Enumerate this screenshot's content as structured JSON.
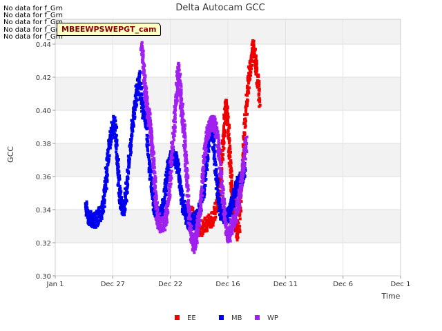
{
  "notices": [
    "No data for f_Grn",
    "No data for f_Grn",
    "No data for f_Grn",
    "No data for f_Grn",
    "No data for f_Grn"
  ],
  "station_tag": "MBEEWPSWEPGT_cam",
  "chart_data": {
    "type": "scatter",
    "title": "Delta Autocam GCC",
    "xlabel": "Time",
    "ylabel": "GCC",
    "x_tick_labels": [
      "Jan 1",
      "Dec 27",
      "Dec 22",
      "Dec 16",
      "Dec 11",
      "Dec 6",
      "Dec 1"
    ],
    "y_ticks": [
      0.3,
      0.32,
      0.34,
      0.36,
      0.38,
      0.4,
      0.42,
      0.44
    ],
    "ylim": [
      0.3,
      0.455
    ],
    "grid": true,
    "legend_position": "bottom-center",
    "series": [
      {
        "name": "EE",
        "color": "#ee0000",
        "points": [
          [
            0.394,
            0.34
          ],
          [
            0.405,
            0.333
          ],
          [
            0.418,
            0.328
          ],
          [
            0.432,
            0.33
          ],
          [
            0.445,
            0.333
          ],
          [
            0.458,
            0.335
          ],
          [
            0.472,
            0.345
          ],
          [
            0.48,
            0.36
          ],
          [
            0.486,
            0.378
          ],
          [
            0.49,
            0.392
          ],
          [
            0.494,
            0.402
          ],
          [
            0.498,
            0.398
          ],
          [
            0.502,
            0.385
          ],
          [
            0.506,
            0.368
          ],
          [
            0.51,
            0.356
          ],
          [
            0.515,
            0.346
          ],
          [
            0.52,
            0.335
          ],
          [
            0.526,
            0.325
          ],
          [
            0.532,
            0.33
          ],
          [
            0.538,
            0.352
          ],
          [
            0.544,
            0.372
          ],
          [
            0.55,
            0.392
          ],
          [
            0.556,
            0.41
          ],
          [
            0.562,
            0.422
          ],
          [
            0.568,
            0.43
          ],
          [
            0.574,
            0.438
          ],
          [
            0.58,
            0.43
          ],
          [
            0.586,
            0.418
          ],
          [
            0.592,
            0.405
          ]
        ]
      },
      {
        "name": "MB",
        "color": "#0000ee",
        "points": [
          [
            0.088,
            0.342
          ],
          [
            0.094,
            0.336
          ],
          [
            0.102,
            0.334
          ],
          [
            0.11,
            0.333
          ],
          [
            0.118,
            0.334
          ],
          [
            0.126,
            0.336
          ],
          [
            0.134,
            0.338
          ],
          [
            0.142,
            0.346
          ],
          [
            0.148,
            0.36
          ],
          [
            0.152,
            0.372
          ],
          [
            0.158,
            0.38
          ],
          [
            0.164,
            0.388
          ],
          [
            0.17,
            0.393
          ],
          [
            0.176,
            0.385
          ],
          [
            0.18,
            0.372
          ],
          [
            0.184,
            0.358
          ],
          [
            0.188,
            0.348
          ],
          [
            0.194,
            0.34
          ],
          [
            0.2,
            0.342
          ],
          [
            0.206,
            0.352
          ],
          [
            0.212,
            0.366
          ],
          [
            0.218,
            0.38
          ],
          [
            0.224,
            0.392
          ],
          [
            0.23,
            0.402
          ],
          [
            0.236,
            0.412
          ],
          [
            0.242,
            0.42
          ],
          [
            0.248,
            0.41
          ],
          [
            0.254,
            0.4
          ],
          [
            0.26,
            0.398
          ],
          [
            0.266,
            0.385
          ],
          [
            0.272,
            0.37
          ],
          [
            0.278,
            0.356
          ],
          [
            0.284,
            0.346
          ],
          [
            0.29,
            0.34
          ],
          [
            0.296,
            0.338
          ],
          [
            0.302,
            0.336
          ],
          [
            0.308,
            0.338
          ],
          [
            0.314,
            0.344
          ],
          [
            0.32,
            0.355
          ],
          [
            0.326,
            0.364
          ],
          [
            0.332,
            0.37
          ],
          [
            0.338,
            0.372
          ],
          [
            0.344,
            0.372
          ],
          [
            0.35,
            0.37
          ],
          [
            0.356,
            0.364
          ],
          [
            0.362,
            0.356
          ],
          [
            0.368,
            0.345
          ],
          [
            0.376,
            0.338
          ],
          [
            0.384,
            0.333
          ],
          [
            0.392,
            0.332
          ],
          [
            0.402,
            0.333
          ],
          [
            0.412,
            0.336
          ],
          [
            0.422,
            0.344
          ],
          [
            0.43,
            0.352
          ],
          [
            0.438,
            0.366
          ],
          [
            0.444,
            0.38
          ],
          [
            0.45,
            0.392
          ],
          [
            0.456,
            0.385
          ],
          [
            0.462,
            0.37
          ],
          [
            0.468,
            0.356
          ],
          [
            0.474,
            0.346
          ],
          [
            0.48,
            0.338
          ],
          [
            0.488,
            0.336
          ],
          [
            0.496,
            0.336
          ],
          [
            0.504,
            0.338
          ],
          [
            0.512,
            0.342
          ],
          [
            0.52,
            0.35
          ],
          [
            0.526,
            0.355
          ],
          [
            0.534,
            0.356
          ],
          [
            0.542,
            0.36
          ],
          [
            0.55,
            0.365
          ]
        ]
      },
      {
        "name": "WP",
        "color": "#a020f0",
        "points": [
          [
            0.25,
            0.44
          ],
          [
            0.254,
            0.43
          ],
          [
            0.258,
            0.418
          ],
          [
            0.262,
            0.41
          ],
          [
            0.266,
            0.402
          ],
          [
            0.27,
            0.398
          ],
          [
            0.274,
            0.392
          ],
          [
            0.278,
            0.385
          ],
          [
            0.282,
            0.375
          ],
          [
            0.286,
            0.362
          ],
          [
            0.29,
            0.348
          ],
          [
            0.294,
            0.338
          ],
          [
            0.3,
            0.333
          ],
          [
            0.308,
            0.33
          ],
          [
            0.316,
            0.332
          ],
          [
            0.322,
            0.336
          ],
          [
            0.328,
            0.345
          ],
          [
            0.334,
            0.362
          ],
          [
            0.34,
            0.38
          ],
          [
            0.346,
            0.396
          ],
          [
            0.352,
            0.41
          ],
          [
            0.356,
            0.425
          ],
          [
            0.36,
            0.418
          ],
          [
            0.364,
            0.405
          ],
          [
            0.368,
            0.398
          ],
          [
            0.372,
            0.39
          ],
          [
            0.376,
            0.38
          ],
          [
            0.38,
            0.365
          ],
          [
            0.384,
            0.348
          ],
          [
            0.388,
            0.335
          ],
          [
            0.392,
            0.328
          ],
          [
            0.396,
            0.322
          ],
          [
            0.4,
            0.32
          ],
          [
            0.404,
            0.318
          ],
          [
            0.408,
            0.322
          ],
          [
            0.412,
            0.328
          ],
          [
            0.416,
            0.335
          ],
          [
            0.422,
            0.344
          ],
          [
            0.428,
            0.36
          ],
          [
            0.434,
            0.376
          ],
          [
            0.44,
            0.386
          ],
          [
            0.446,
            0.39
          ],
          [
            0.452,
            0.392
          ],
          [
            0.458,
            0.392
          ],
          [
            0.464,
            0.39
          ],
          [
            0.47,
            0.384
          ],
          [
            0.476,
            0.37
          ],
          [
            0.482,
            0.356
          ],
          [
            0.488,
            0.342
          ],
          [
            0.494,
            0.33
          ],
          [
            0.5,
            0.324
          ],
          [
            0.506,
            0.326
          ],
          [
            0.512,
            0.33
          ],
          [
            0.518,
            0.334
          ],
          [
            0.524,
            0.338
          ],
          [
            0.53,
            0.344
          ],
          [
            0.536,
            0.352
          ],
          [
            0.542,
            0.362
          ],
          [
            0.548,
            0.372
          ],
          [
            0.554,
            0.38
          ]
        ]
      }
    ]
  }
}
